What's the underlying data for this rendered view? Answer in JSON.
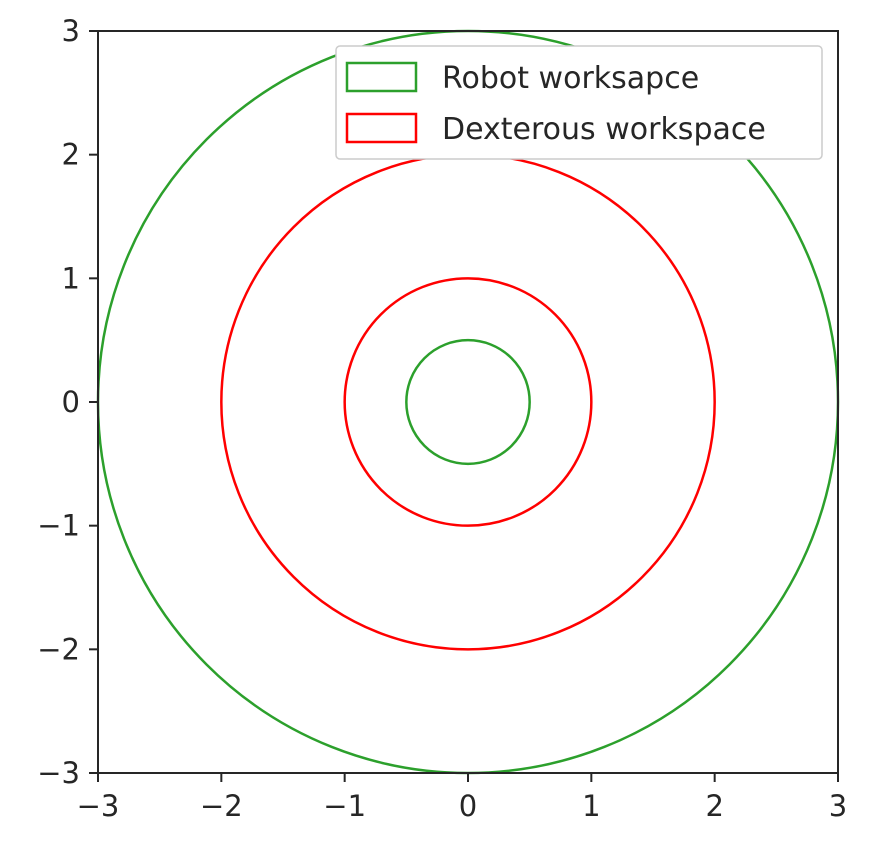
{
  "chart_data": {
    "type": "line",
    "title": "",
    "xlabel": "",
    "ylabel": "",
    "xlim": [
      -3,
      3
    ],
    "ylim": [
      -3,
      3
    ],
    "grid": false,
    "legend_position": "top-right",
    "xticks": [
      -3,
      -2,
      -1,
      0,
      1,
      2,
      3
    ],
    "yticks": [
      -3,
      -2,
      -1,
      0,
      1,
      2,
      3
    ],
    "xtick_labels": [
      "−3",
      "−2",
      "−1",
      "0",
      "1",
      "2",
      "3"
    ],
    "ytick_labels": [
      "−3",
      "−2",
      "−1",
      "0",
      "1",
      "2",
      "3"
    ],
    "series": [
      {
        "name": "Robot worksapce",
        "color": "#2ca02c",
        "circles": [
          {
            "center": [
              0,
              0
            ],
            "radius": 3
          },
          {
            "center": [
              0,
              0
            ],
            "radius": 0.5
          }
        ]
      },
      {
        "name": "Dexterous workspace",
        "color": "#ff0000",
        "circles": [
          {
            "center": [
              0,
              0
            ],
            "radius": 2
          },
          {
            "center": [
              0,
              0
            ],
            "radius": 1
          }
        ]
      }
    ]
  }
}
